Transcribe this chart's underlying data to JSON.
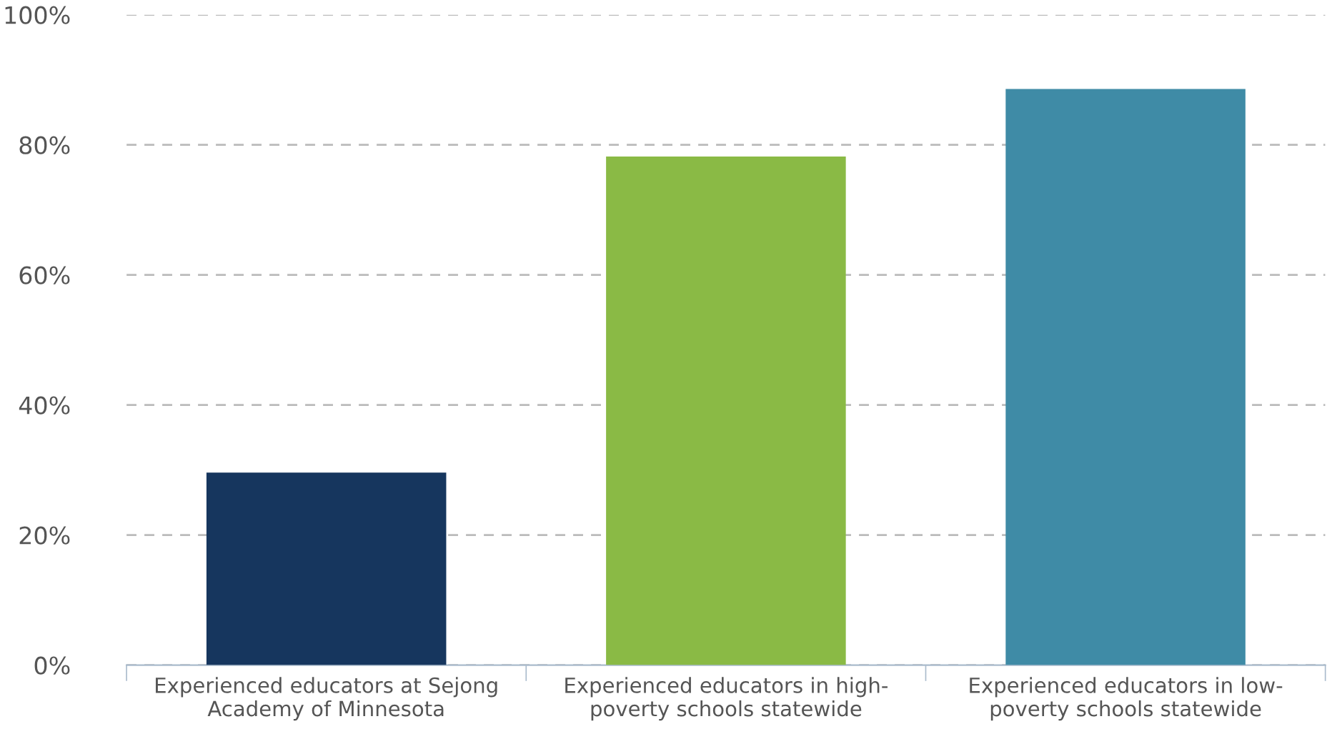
{
  "chart_data": {
    "type": "bar",
    "categories": [
      "Experienced educators at Sejong\nAcademy of Minnesota",
      "Experienced educators in high-\npoverty schools statewide",
      "Experienced educators in low-\npoverty schools statewide"
    ],
    "values": [
      29.6,
      78.2,
      88.6
    ],
    "colors": [
      "#16365e",
      "#8aba45",
      "#3f8ba6"
    ],
    "ylim": [
      0,
      100
    ],
    "yticks": [
      {
        "value": 0,
        "label": "0%"
      },
      {
        "value": 20,
        "label": "20%"
      },
      {
        "value": 40,
        "label": "40%"
      },
      {
        "value": 60,
        "label": "60%"
      },
      {
        "value": 80,
        "label": "80%"
      },
      {
        "value": 100,
        "label": "100%"
      }
    ],
    "grid": "y",
    "legend": false
  }
}
